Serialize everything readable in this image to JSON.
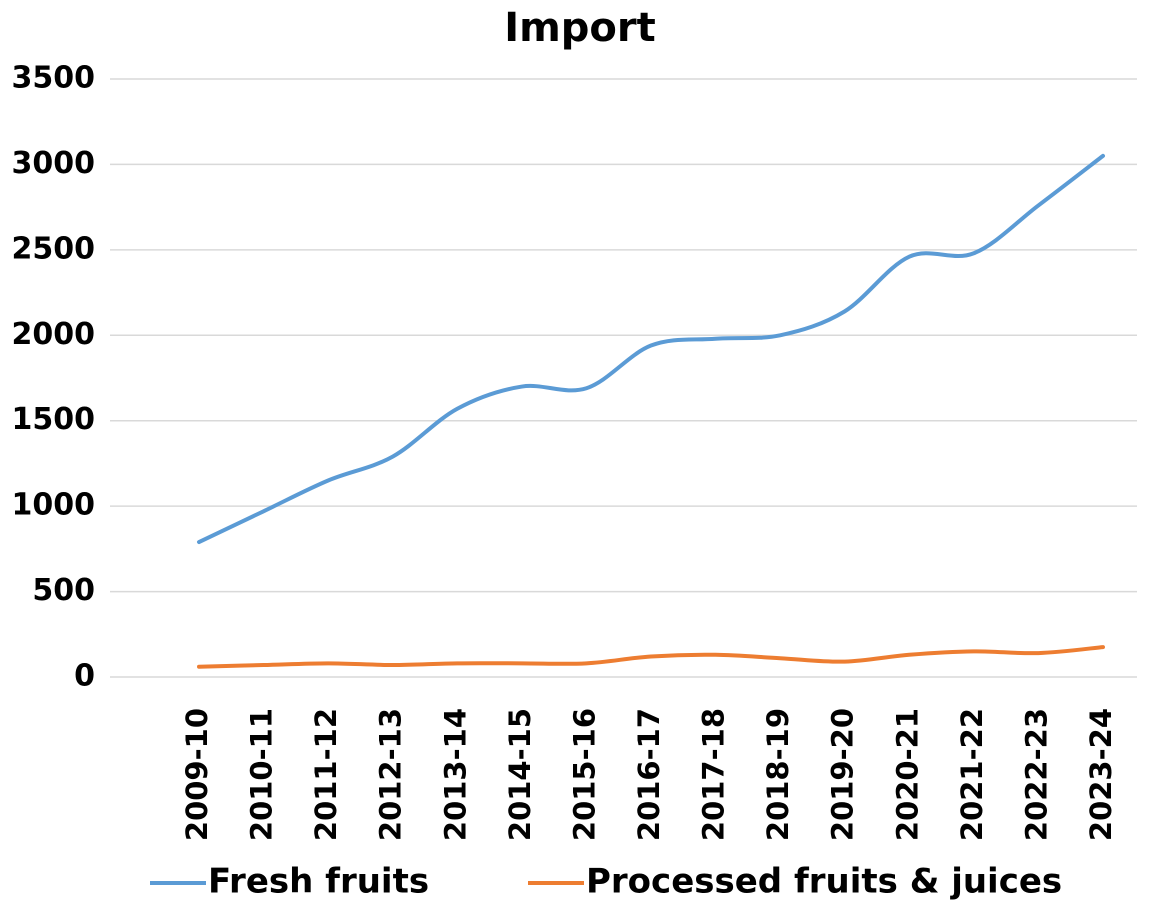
{
  "chart_data": {
    "type": "line",
    "title": "Import",
    "categories": [
      "2009-10",
      "2010-11",
      "2011-12",
      "2012-13",
      "2013-14",
      "2014-15",
      "2015-16",
      "2016-17",
      "2017-18",
      "2018-19",
      "2019-20",
      "2020-21",
      "2021-22",
      "2022-23",
      "2023-24"
    ],
    "series": [
      {
        "name": "Fresh fruits",
        "color": "#5b9bd5",
        "values": [
          790,
          970,
          1150,
          1290,
          1570,
          1700,
          1690,
          1940,
          1980,
          2000,
          2140,
          2460,
          2480,
          2760,
          3050
        ]
      },
      {
        "name": "Processed fruits & juices",
        "color": "#ed7d31",
        "values": [
          60,
          70,
          80,
          70,
          80,
          80,
          80,
          120,
          130,
          110,
          90,
          130,
          150,
          140,
          175
        ]
      }
    ],
    "ylim": [
      0,
      3500
    ],
    "yticks": [
      0,
      500,
      1000,
      1500,
      2000,
      2500,
      3000,
      3500
    ],
    "grid": true,
    "legend": "bottom"
  }
}
